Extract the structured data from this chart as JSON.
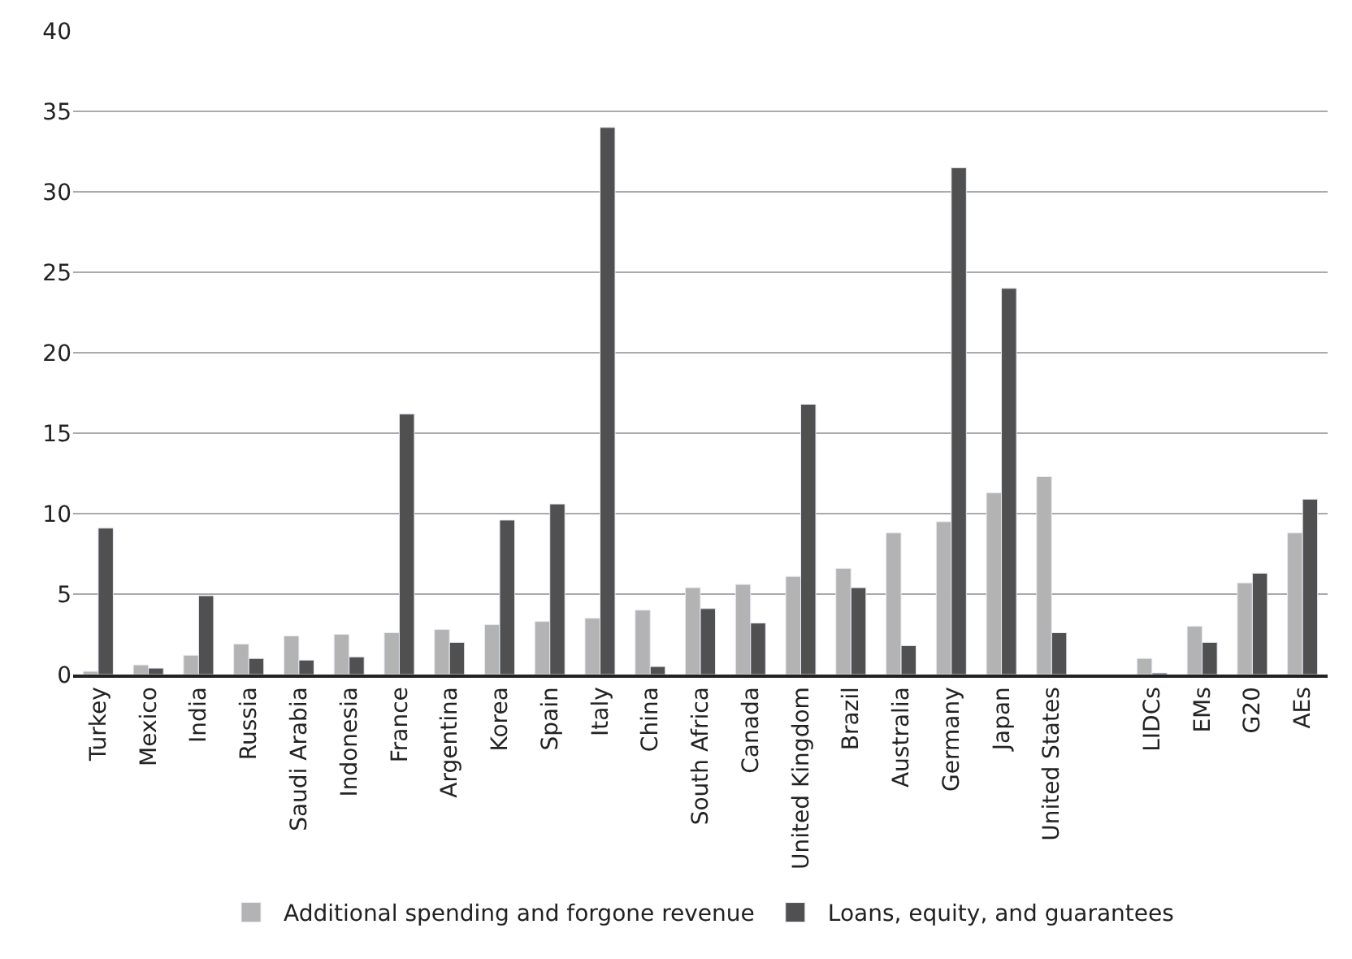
{
  "chart_data": {
    "type": "bar",
    "categories": [
      "Turkey",
      "Mexico",
      "India",
      "Russia",
      "Saudi Arabia",
      "Indonesia",
      "France",
      "Argentina",
      "Korea",
      "Spain",
      "Italy",
      "China",
      "South Africa",
      "Canada",
      "United Kingdom",
      "Brazil",
      "Australia",
      "Germany",
      "Japan",
      "United States",
      null,
      "LIDCs",
      "EMs",
      "G20",
      "AEs"
    ],
    "series": [
      {
        "name": "Additional spending and forgone revenue",
        "color": "#b3b3b3",
        "values": [
          0.2,
          0.6,
          1.2,
          1.9,
          2.4,
          2.5,
          2.6,
          2.8,
          3.1,
          3.3,
          3.5,
          4.0,
          5.4,
          5.6,
          6.1,
          6.6,
          8.8,
          9.5,
          11.3,
          12.3,
          null,
          1.0,
          3.0,
          5.7,
          8.8
        ]
      },
      {
        "name": "Loans, equity, and guarantees",
        "color": "#505050",
        "values": [
          9.1,
          0.4,
          4.9,
          1.0,
          0.9,
          1.1,
          16.2,
          2.0,
          9.6,
          10.6,
          34.0,
          0.5,
          4.1,
          3.2,
          16.8,
          5.4,
          1.8,
          31.5,
          24.0,
          2.6,
          null,
          0.1,
          2.0,
          6.3,
          10.9
        ]
      }
    ],
    "ylim": [
      0,
      40
    ],
    "yticks": [
      0,
      5,
      10,
      15,
      20,
      25,
      30,
      35,
      40
    ],
    "grid": "y",
    "legend": "bottom"
  }
}
